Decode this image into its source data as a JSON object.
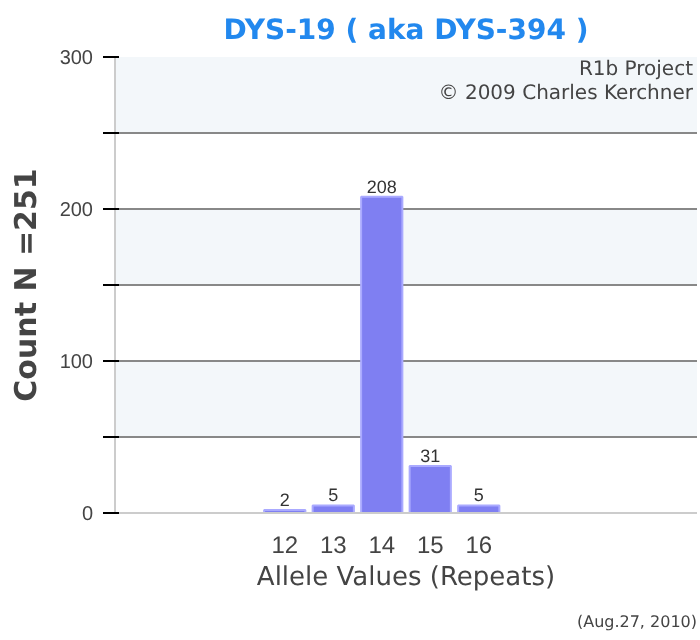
{
  "chart_data": {
    "type": "bar",
    "title": "DYS-19 ( aka DYS-394 )",
    "xlabel": "Allele Values (Repeats)",
    "ylabel": "Count N =251",
    "categories": [
      null,
      null,
      null,
      "12",
      "13",
      "14",
      "15",
      "16",
      null,
      null,
      null,
      null
    ],
    "values": [
      null,
      null,
      null,
      2,
      5,
      208,
      31,
      5,
      null,
      null,
      null,
      null
    ],
    "color": "#7f7ff2",
    "data_labels": true,
    "ylim": [
      0,
      300
    ],
    "yticks": [
      0,
      {
        "value": 50,
        "label": null
      },
      100,
      {
        "value": 150,
        "label": null
      },
      200,
      {
        "value": 250,
        "label": null
      },
      300
    ],
    "grid": "y",
    "annotations": [
      "R1b Project",
      "© 2009 Charles Kerchner",
      "(Aug.27, 2010)"
    ]
  }
}
